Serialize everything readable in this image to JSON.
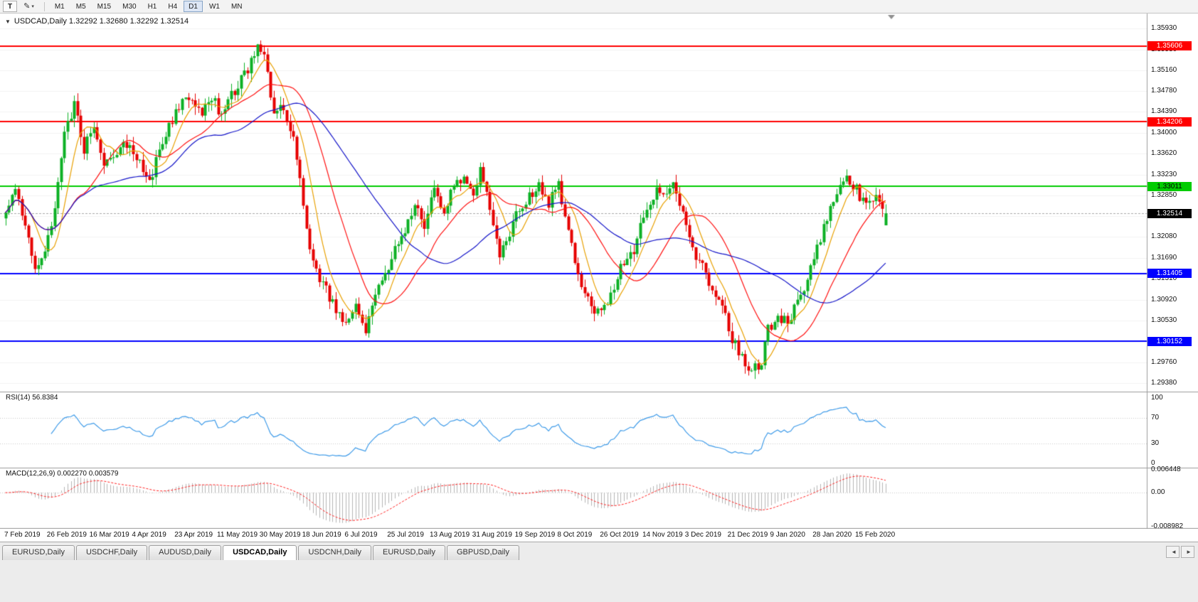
{
  "toolbar": {
    "tool_t_label": "T",
    "draw_icon": "✎",
    "draw_dropdown_caret": "▾",
    "timeframes": [
      "M1",
      "M5",
      "M15",
      "M30",
      "H1",
      "H4",
      "D1",
      "W1",
      "MN"
    ],
    "active_timeframe": "D1"
  },
  "symbol_header": {
    "collapse_icon": "▼",
    "text": "USDCAD,Daily 1.32292 1.32680 1.32292 1.32514"
  },
  "chart_data": {
    "type": "candlestick",
    "symbol": "USDCAD",
    "timeframe": "Daily",
    "ohlc_current": {
      "open": "1.32292",
      "high": "1.32680",
      "low": "1.32292",
      "close": "1.32514"
    },
    "bar_count": 270,
    "noise_seed": 9,
    "x_labels": [
      "7 Feb 2019",
      "26 Feb 2019",
      "16 Mar 2019",
      "4 Apr 2019",
      "23 Apr 2019",
      "11 May 2019",
      "30 May 2019",
      "18 Jun 2019",
      "6 Jul 2019",
      "25 Jul 2019",
      "13 Aug 2019",
      "31 Aug 2019",
      "19 Sep 2019",
      "8 Oct 2019",
      "26 Oct 2019",
      "14 Nov 2019",
      "3 Dec 2019",
      "21 Dec 2019",
      "9 Jan 2020",
      "28 Jan 2020",
      "15 Feb 2020"
    ],
    "x_label_step": 13,
    "y_ticks": [
      "1.35930",
      "1.35530",
      "1.35160",
      "1.34780",
      "1.34390",
      "1.34000",
      "1.33620",
      "1.33230",
      "1.32850",
      "1.32460",
      "1.32080",
      "1.31690",
      "1.31310",
      "1.30920",
      "1.30530",
      "1.30150",
      "1.29760",
      "1.29380"
    ],
    "y_range": [
      1.2926,
      1.3606
    ],
    "price_anchors": [
      [
        0,
        1.3245
      ],
      [
        3,
        1.3292
      ],
      [
        6,
        1.322
      ],
      [
        9,
        1.3155
      ],
      [
        12,
        1.3185
      ],
      [
        15,
        1.326
      ],
      [
        18,
        1.34
      ],
      [
        21,
        1.3455
      ],
      [
        24,
        1.337
      ],
      [
        27,
        1.342
      ],
      [
        30,
        1.3335
      ],
      [
        33,
        1.336
      ],
      [
        36,
        1.339
      ],
      [
        40,
        1.335
      ],
      [
        44,
        1.3312
      ],
      [
        48,
        1.338
      ],
      [
        52,
        1.344
      ],
      [
        56,
        1.3468
      ],
      [
        60,
        1.344
      ],
      [
        63,
        1.3468
      ],
      [
        66,
        1.3432
      ],
      [
        70,
        1.348
      ],
      [
        74,
        1.352
      ],
      [
        77,
        1.3558
      ],
      [
        79,
        1.354
      ],
      [
        82,
        1.3432
      ],
      [
        85,
        1.3445
      ],
      [
        88,
        1.339
      ],
      [
        90,
        1.332
      ],
      [
        93,
        1.318
      ],
      [
        96,
        1.313
      ],
      [
        100,
        1.3085
      ],
      [
        104,
        1.305
      ],
      [
        107,
        1.3075
      ],
      [
        110,
        1.304
      ],
      [
        113,
        1.3105
      ],
      [
        117,
        1.315
      ],
      [
        121,
        1.321
      ],
      [
        125,
        1.3268
      ],
      [
        128,
        1.323
      ],
      [
        131,
        1.329
      ],
      [
        134,
        1.3255
      ],
      [
        137,
        1.33
      ],
      [
        140,
        1.331
      ],
      [
        143,
        1.328
      ],
      [
        145,
        1.334
      ],
      [
        148,
        1.3265
      ],
      [
        151,
        1.317
      ],
      [
        154,
        1.3215
      ],
      [
        157,
        1.3262
      ],
      [
        160,
        1.328
      ],
      [
        163,
        1.331
      ],
      [
        166,
        1.327
      ],
      [
        169,
        1.33
      ],
      [
        172,
        1.322
      ],
      [
        175,
        1.3135
      ],
      [
        178,
        1.309
      ],
      [
        182,
        1.3062
      ],
      [
        185,
        1.3095
      ],
      [
        188,
        1.316
      ],
      [
        192,
        1.3175
      ],
      [
        195,
        1.325
      ],
      [
        198,
        1.3285
      ],
      [
        201,
        1.3295
      ],
      [
        204,
        1.3305
      ],
      [
        207,
        1.326
      ],
      [
        210,
        1.318
      ],
      [
        213,
        1.3165
      ],
      [
        216,
        1.311
      ],
      [
        219,
        1.3075
      ],
      [
        222,
        1.302
      ],
      [
        225,
        1.2985
      ],
      [
        228,
        1.2962
      ],
      [
        231,
        1.2975
      ],
      [
        233,
        1.304
      ],
      [
        236,
        1.306
      ],
      [
        239,
        1.305
      ],
      [
        242,
        1.3085
      ],
      [
        245,
        1.313
      ],
      [
        248,
        1.319
      ],
      [
        251,
        1.3245
      ],
      [
        254,
        1.329
      ],
      [
        257,
        1.3315
      ],
      [
        260,
        1.3295
      ],
      [
        263,
        1.3265
      ],
      [
        266,
        1.329
      ],
      [
        269,
        1.3251
      ]
    ],
    "last_candle": [
      1.32292,
      1.3268,
      1.32292,
      1.32514
    ],
    "colors": {
      "up": "#0cb025",
      "down": "#e60000",
      "ma_fast": "#e8a000",
      "ma_mid": "#ff1010",
      "ma_slow": "#1414c8",
      "rsi": "#3d9ae8",
      "macd_hist": "#b4b4b4",
      "macd_signal": "#ff2020",
      "grid": "#f2f2f2",
      "bid": "#a8a8a8",
      "separator": "#9b9b9b",
      "shift_marker": "#909090"
    },
    "moving_averages": [
      {
        "period": 8,
        "color_key": "ma_fast"
      },
      {
        "period": 21,
        "color_key": "ma_mid"
      },
      {
        "period": 44,
        "color_key": "ma_slow"
      }
    ],
    "h_lines": [
      {
        "value": 1.35606,
        "label": "1.35606",
        "color": "#ff0000",
        "text": "#ffffff"
      },
      {
        "value": 1.34206,
        "label": "1.34206",
        "color": "#ff0000",
        "text": "#ffffff"
      },
      {
        "value": 1.33011,
        "label": "1.33011",
        "color": "#00cc00",
        "text": "#000000"
      },
      {
        "value": 1.31405,
        "label": "1.31405",
        "color": "#0000ff",
        "text": "#ffffff"
      },
      {
        "value": 1.30152,
        "label": "1.30152",
        "color": "#0000ff",
        "text": "#ffffff"
      }
    ],
    "current_price": {
      "value": 1.32514,
      "label": "1.32514",
      "bg": "#000000",
      "text": "#ffffff"
    },
    "rsi": {
      "label": "RSI(14) 56.8384",
      "period": 14,
      "scale_labels": [
        "100",
        "70",
        "30",
        "0"
      ],
      "levels": [
        70,
        30
      ]
    },
    "macd": {
      "label": "MACD(12,26,9) 0.002270 0.003579",
      "fast": 12,
      "slow": 26,
      "signal": 9,
      "scale_top": "0.006448",
      "scale_zero": "0.00",
      "scale_bottom": "-0.008982"
    }
  },
  "tabs": {
    "items": [
      {
        "label": "EURUSD,Daily",
        "active": false
      },
      {
        "label": "USDCHF,Daily",
        "active": false
      },
      {
        "label": "AUDUSD,Daily",
        "active": false
      },
      {
        "label": "USDCAD,Daily",
        "active": true
      },
      {
        "label": "USDCNH,Daily",
        "active": false
      },
      {
        "label": "EURUSD,Daily",
        "active": false
      },
      {
        "label": "GBPUSD,Daily",
        "active": false
      }
    ],
    "scroll_left": "◄",
    "scroll_right": "►"
  }
}
